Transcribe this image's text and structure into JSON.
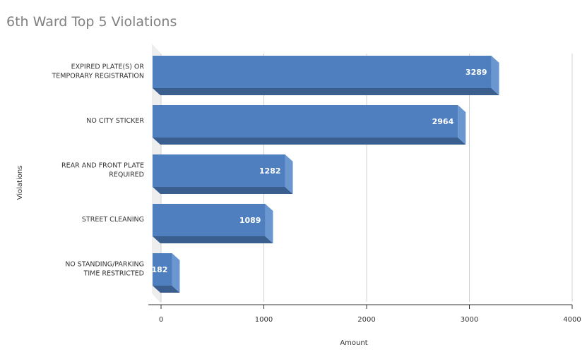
{
  "chart_data": {
    "type": "bar",
    "orientation": "horizontal",
    "title": "6th Ward Top 5 Violations",
    "xlabel": "Amount",
    "ylabel": "Violations",
    "categories": [
      [
        "EXPIRED PLATE(S) OR",
        "TEMPORARY REGISTRATION"
      ],
      [
        "NO CITY STICKER"
      ],
      [
        "REAR AND FRONT PLATE",
        "REQUIRED"
      ],
      [
        "STREET CLEANING"
      ],
      [
        "NO STANDING/PARKING",
        "TIME RESTRICTED"
      ]
    ],
    "values": [
      3289,
      2964,
      1282,
      1089,
      182
    ],
    "xlim": [
      0,
      4000
    ],
    "xticks": [
      0,
      1000,
      2000,
      3000,
      4000
    ],
    "grid": true,
    "legend": "none",
    "colors": {
      "bar_front": "#4f7fbe",
      "bar_bottom": "#3a5f8e",
      "bar_side": "#6a97cf",
      "grid": "#d0d0d0"
    }
  }
}
